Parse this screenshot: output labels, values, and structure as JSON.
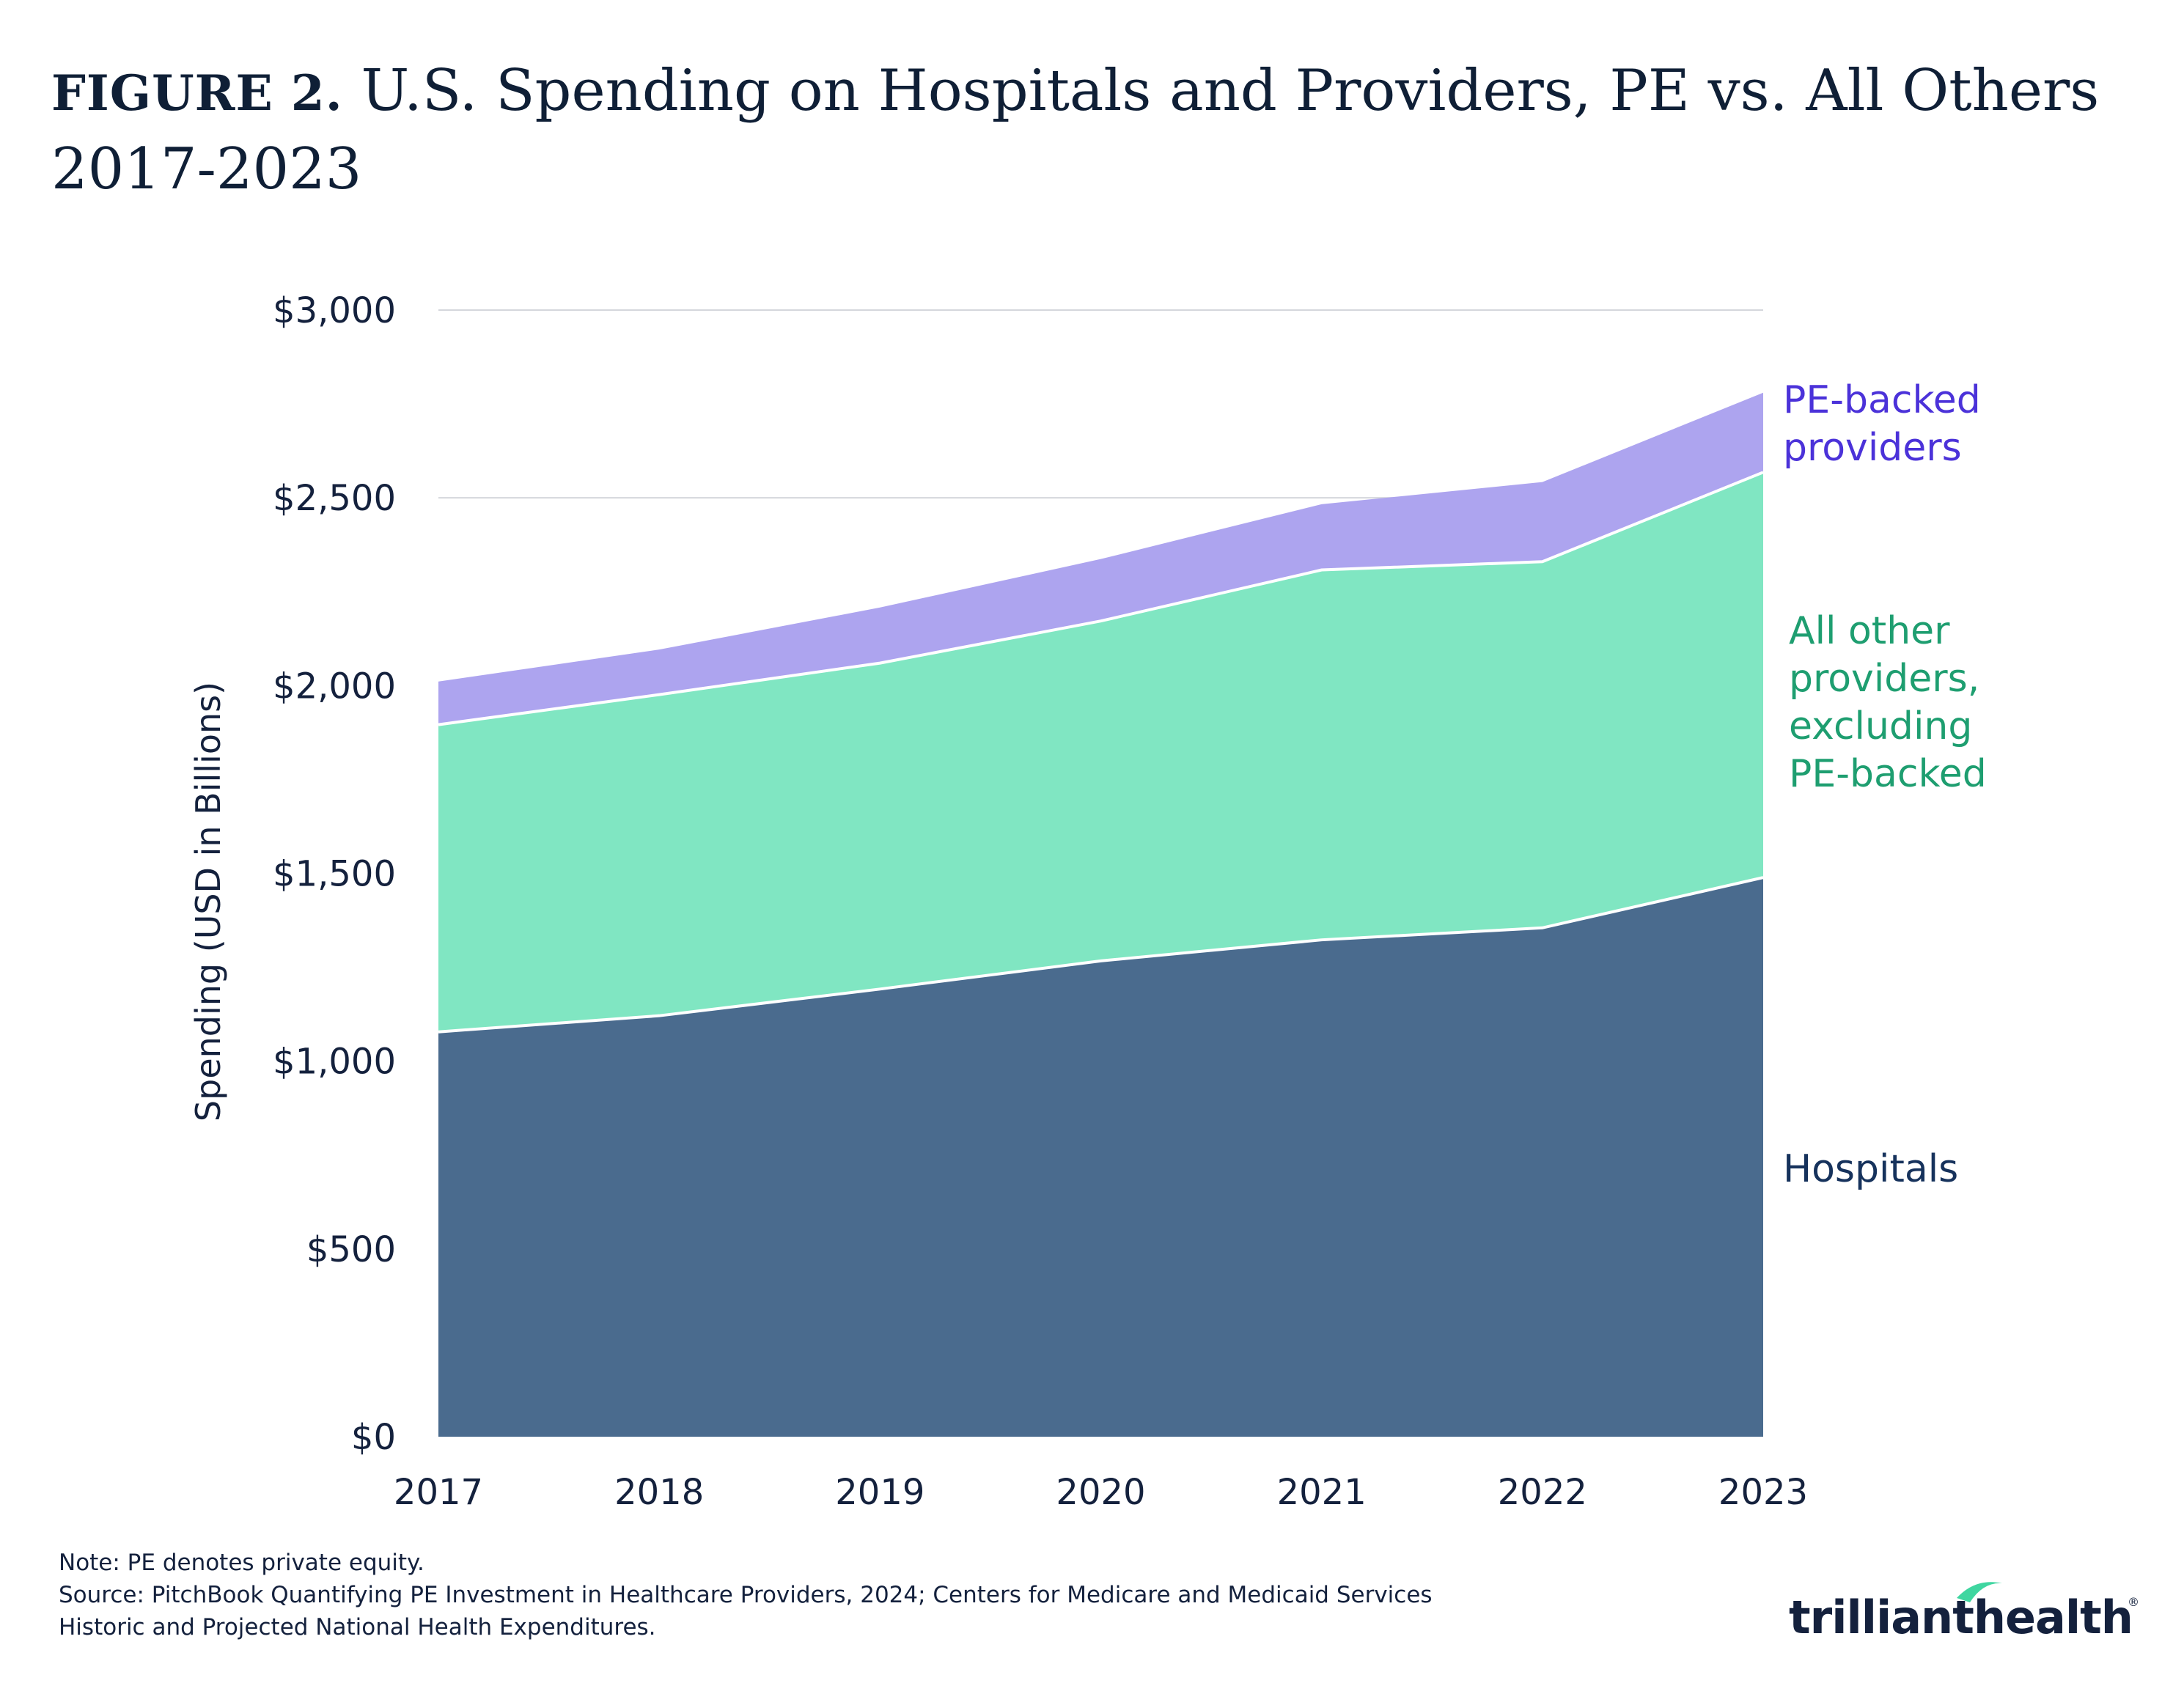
{
  "header": {
    "figure_label": "FIGURE 2.",
    "title_line1": "U.S. Spending on Hospitals and Providers, PE vs. All Others",
    "title_line2": "2017-2023"
  },
  "colors": {
    "hospitals": "#4a6b8e",
    "all_other": "#80e6c2",
    "pe_backed": "#ada4ef",
    "hospitals_label": "#16325c",
    "all_other_label": "#1e9e70",
    "pe_label": "#4b32d9",
    "grid": "#d4d7dc"
  },
  "chart_data": {
    "type": "area",
    "stacked": true,
    "x": [
      "2017",
      "2018",
      "2019",
      "2020",
      "2021",
      "2022",
      "2023"
    ],
    "series": [
      {
        "name": "Hospitals",
        "label_lines": [
          "Hospitals"
        ],
        "values": [
          1078,
          1121,
          1192,
          1267,
          1323,
          1355,
          1489
        ]
      },
      {
        "name": "All other providers, excluding PE-backed",
        "label_lines": [
          "All other",
          "providers,",
          "excluding",
          "PE-backed"
        ],
        "values": [
          818,
          855,
          868,
          905,
          985,
          975,
          1079
        ]
      },
      {
        "name": "PE-backed providers",
        "label_lines": [
          "PE-backed",
          "providers"
        ],
        "values": [
          115,
          120,
          148,
          165,
          175,
          212,
          212
        ]
      }
    ],
    "ylabel": "Spending (USD in Billions)",
    "ylim": [
      0,
      3000
    ],
    "yticks": [
      0,
      500,
      1000,
      1500,
      2000,
      2500,
      3000
    ],
    "ytick_labels": [
      "$0",
      "$500",
      "$1,000",
      "$1,500",
      "$2,000",
      "$2,500",
      "$3,000"
    ],
    "grid": true,
    "legend": "direct labels right"
  },
  "footer": {
    "note": "Note: PE denotes private equity.",
    "source_line1": "Source: PitchBook Quantifying PE Investment in Healthcare Providers, 2024; Centers for Medicare and Medicaid Services",
    "source_line2": "Historic and Projected National Health Expenditures."
  },
  "logo": {
    "text_left": "trilliant",
    "text_right": "health",
    "mark": "®"
  }
}
